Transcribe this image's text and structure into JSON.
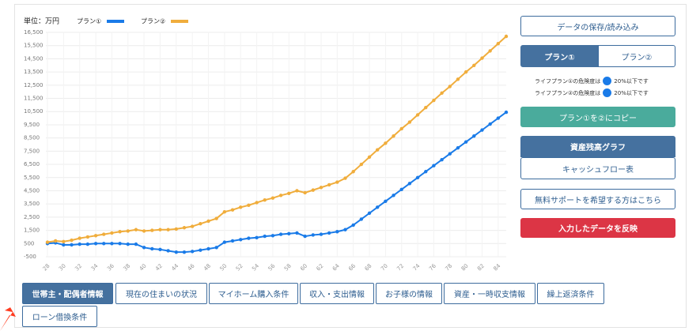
{
  "chart_data": {
    "type": "line",
    "unit_label": "単位：万円",
    "x": [
      28,
      29,
      30,
      31,
      32,
      33,
      34,
      35,
      36,
      37,
      38,
      39,
      40,
      41,
      42,
      43,
      44,
      45,
      46,
      47,
      48,
      49,
      50,
      51,
      52,
      53,
      54,
      55,
      56,
      57,
      58,
      59,
      60,
      61,
      62,
      63,
      64,
      65,
      66,
      67,
      68,
      69,
      70,
      71,
      72,
      73,
      74,
      75,
      76,
      77,
      78,
      79,
      80,
      81,
      82,
      83,
      84,
      85
    ],
    "xlim": [
      28,
      85
    ],
    "xticks": [
      28,
      30,
      32,
      34,
      36,
      38,
      40,
      42,
      44,
      46,
      48,
      50,
      52,
      54,
      56,
      58,
      60,
      62,
      64,
      66,
      68,
      70,
      72,
      74,
      76,
      78,
      80,
      82,
      84
    ],
    "ylim": [
      -500,
      16500
    ],
    "yticks": [
      -500,
      500,
      {
        "value": 1500,
        "label": "1,500"
      },
      {
        "value": 2500,
        "label": "2,500"
      },
      {
        "value": 3500,
        "label": "3,500"
      },
      {
        "value": 4500,
        "label": "4,500"
      },
      {
        "value": 5500,
        "label": "5,500"
      },
      {
        "value": 6500,
        "label": "6,500"
      },
      {
        "value": 7500,
        "label": "7,500"
      },
      {
        "value": 8500,
        "label": "8,500"
      },
      {
        "value": 9500,
        "label": "9,500"
      },
      {
        "value": 10500,
        "label": "10,500"
      },
      {
        "value": 11500,
        "label": "11,500"
      },
      {
        "value": 12500,
        "label": "12,500"
      },
      {
        "value": 13500,
        "label": "13,500"
      },
      {
        "value": 14500,
        "label": "14,500"
      },
      {
        "value": 15500,
        "label": "15,500"
      },
      {
        "value": 16500,
        "label": "16,500"
      }
    ],
    "grid": true,
    "series": [
      {
        "name": "プラン①",
        "color": "#1a7be8",
        "values": [
          500,
          550,
          400,
          400,
          450,
          450,
          500,
          500,
          500,
          500,
          450,
          450,
          200,
          100,
          50,
          -50,
          -150,
          -150,
          -100,
          0,
          100,
          200,
          600,
          700,
          800,
          900,
          950,
          1050,
          1100,
          1200,
          1250,
          1300,
          1050,
          1150,
          1200,
          1300,
          1400,
          1550,
          1900,
          2350,
          2800,
          3250,
          3700,
          4150,
          4600,
          5050,
          5500,
          5950,
          6400,
          6850,
          7300,
          7750,
          8200,
          8650,
          9100,
          9550,
          10000,
          10450
        ]
      },
      {
        "name": "プラン②",
        "color": "#f0ad3c",
        "values": [
          600,
          700,
          650,
          750,
          900,
          1000,
          1100,
          1200,
          1300,
          1400,
          1450,
          1550,
          1450,
          1500,
          1550,
          1550,
          1600,
          1700,
          1800,
          2000,
          2200,
          2400,
          2900,
          3050,
          3250,
          3400,
          3600,
          3800,
          3950,
          4150,
          4300,
          4500,
          4350,
          4550,
          4750,
          4950,
          5150,
          5450,
          5950,
          6500,
          7050,
          7600,
          8100,
          8650,
          9200,
          9700,
          10250,
          10800,
          11350,
          11900,
          12400,
          12950,
          13500,
          14000,
          14550,
          15100,
          15650,
          16200
        ]
      }
    ]
  },
  "panel": {
    "save_load": "データの保存/読み込み",
    "plan_tabs": [
      "プラン①",
      "プラン②"
    ],
    "risk": [
      {
        "text": "ライフプラン①の危険度は",
        "level": "20%以下です"
      },
      {
        "text": "ライフプラン②の危険度は",
        "level": "20%以下です"
      }
    ],
    "copy": "プラン①を②にコピー",
    "views": [
      "資産残高グラフ",
      "キャッシュフロー表"
    ],
    "support": "無料サポートを希望する方はこちら",
    "apply": "入力したデータを反映"
  },
  "tabs": [
    "世帯主・配偶者情報",
    "現在の住まいの状況",
    "マイホーム購入条件",
    "収入・支出情報",
    "お子様の情報",
    "資産・一時収支情報",
    "繰上返済条件",
    "ローン借換条件"
  ]
}
